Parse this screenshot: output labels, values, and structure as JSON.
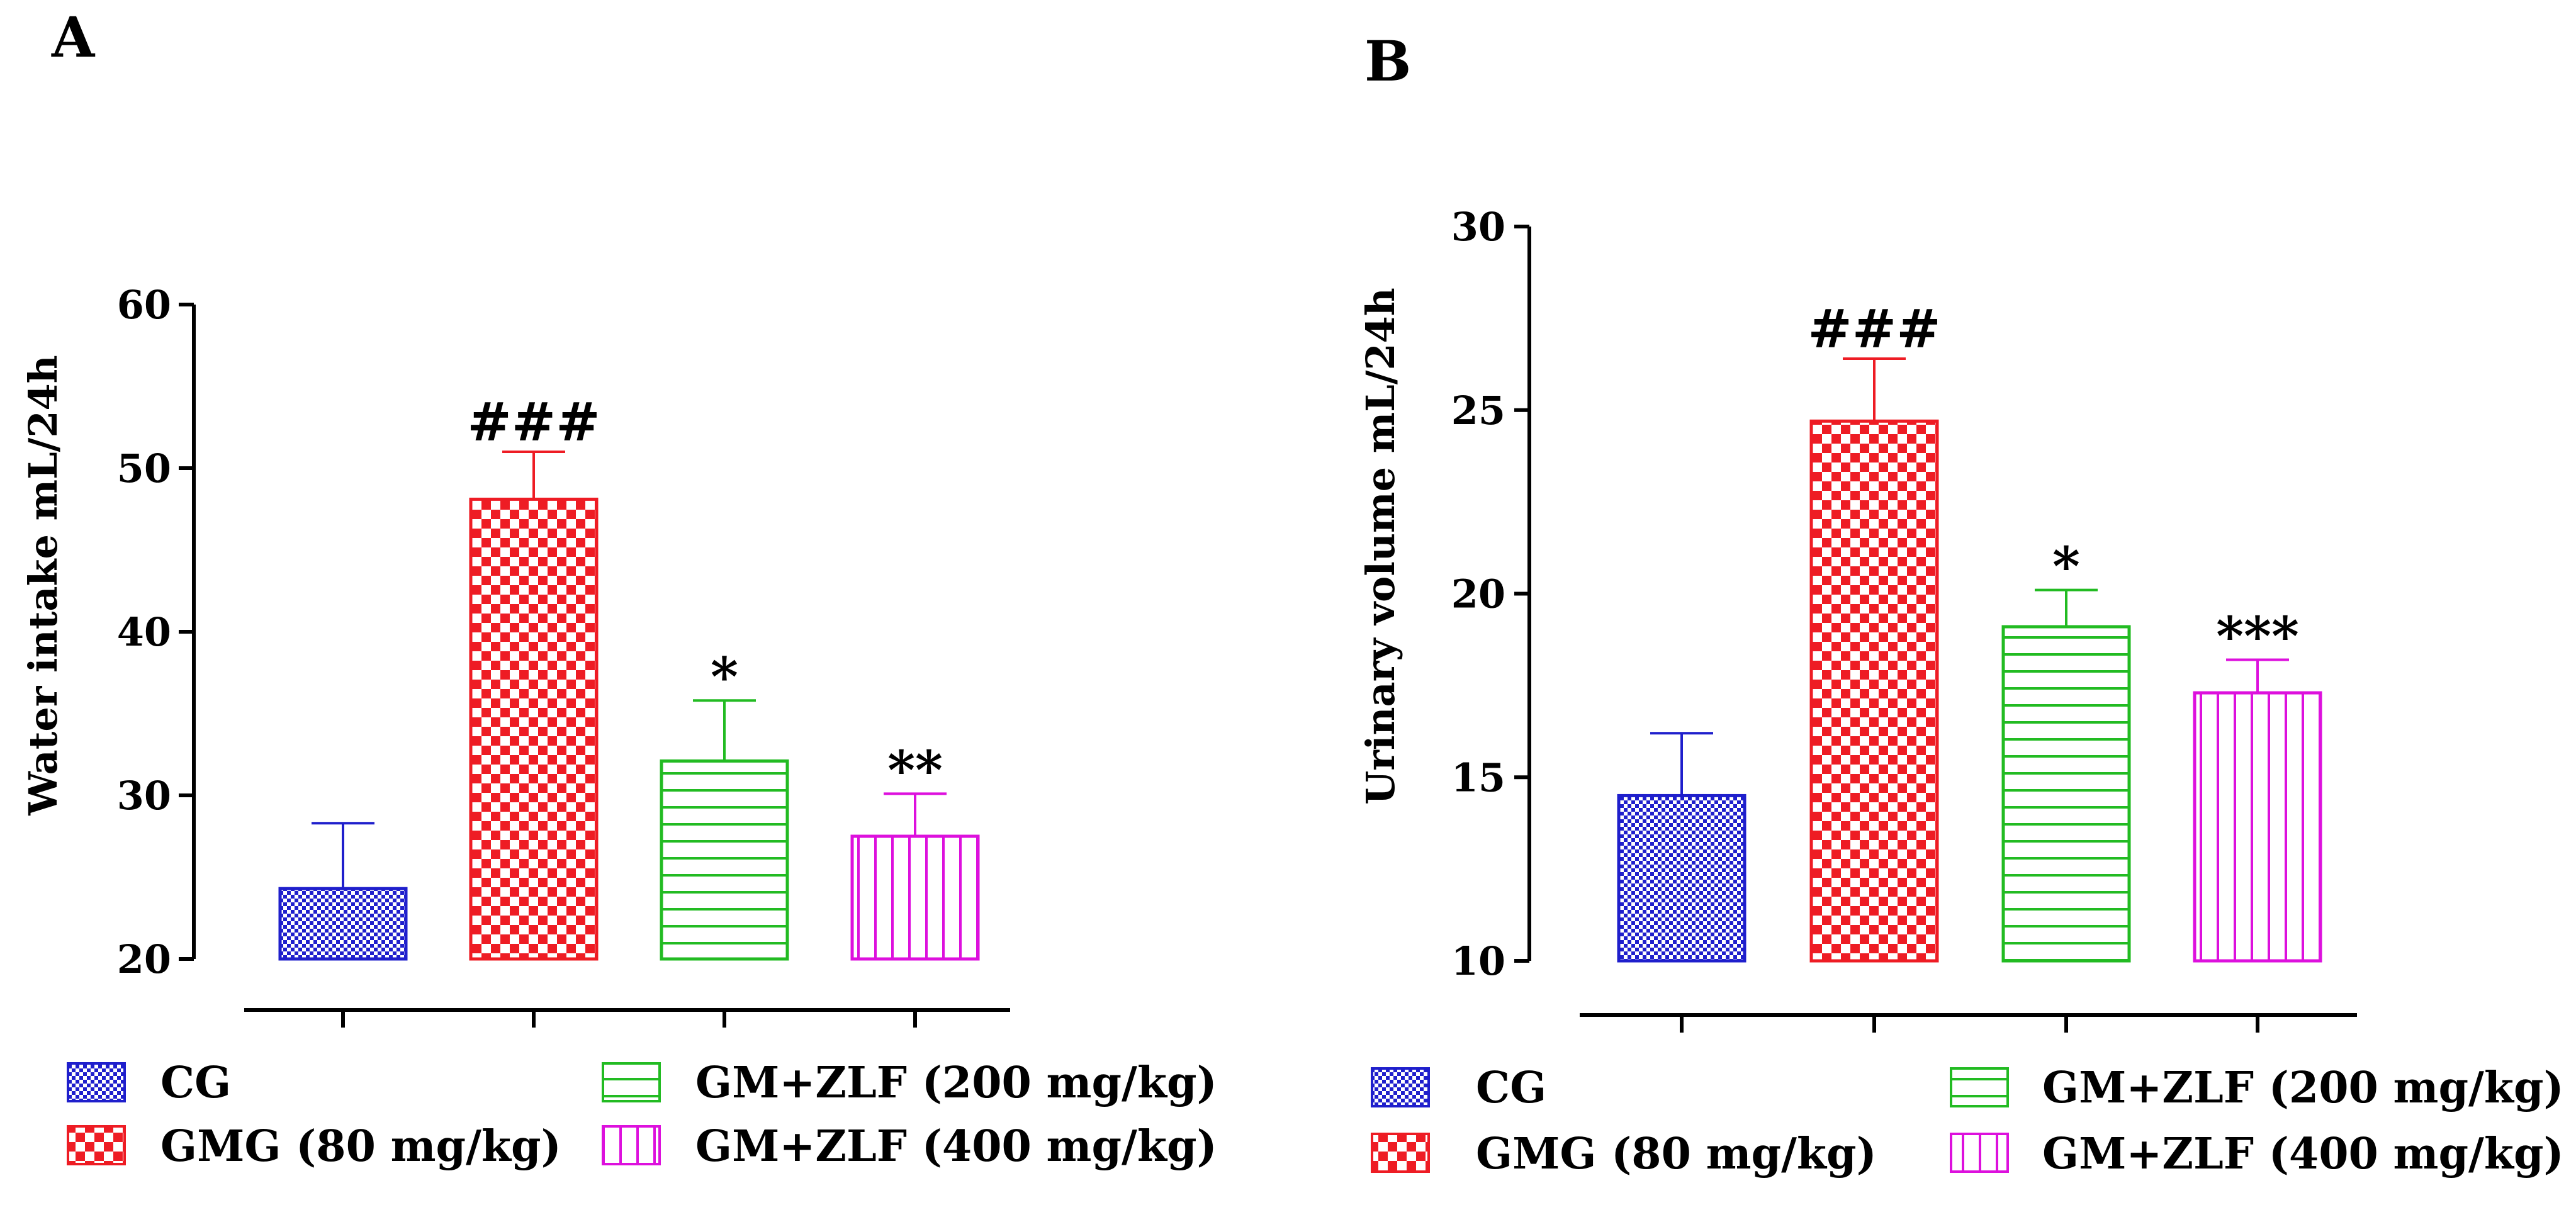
{
  "figure": {
    "groups": [
      {
        "key": "cg",
        "label": "CG",
        "color": "#1f1fcc",
        "pattern": "checker-small"
      },
      {
        "key": "gmg",
        "label": "GMG (80 mg/kg)",
        "color": "#ee1c24",
        "pattern": "checker-large"
      },
      {
        "key": "zlf200",
        "label": "GM+ZLF (200 mg/kg)",
        "color": "#22bb22",
        "pattern": "horizontal"
      },
      {
        "key": "zlf400",
        "label": "GM+ZLF (400 mg/kg)",
        "color": "#dd10dd",
        "pattern": "vertical"
      }
    ]
  },
  "chart_data": [
    {
      "type": "bar",
      "panel_label": "A",
      "title": "",
      "xlabel": "",
      "ylabel": "Water intake mL/24h",
      "ylim": [
        20,
        60
      ],
      "yticks": [
        20,
        30,
        40,
        50,
        60
      ],
      "categories": [
        "CG",
        "GMG (80 mg/kg)",
        "GM+ZLF (200 mg/kg)",
        "GM+ZLF (400 mg/kg)"
      ],
      "values": [
        24.3,
        48.1,
        32.1,
        27.5
      ],
      "errors": [
        4.0,
        2.9,
        3.7,
        2.6
      ],
      "annotations": [
        "",
        "###",
        "*",
        "**"
      ]
    },
    {
      "type": "bar",
      "panel_label": "B",
      "title": "",
      "xlabel": "",
      "ylabel": "Urinary volume mL/24h",
      "ylim": [
        10,
        30
      ],
      "yticks": [
        10,
        15,
        20,
        25,
        30
      ],
      "categories": [
        "CG",
        "GMG (80 mg/kg)",
        "GM+ZLF (200 mg/kg)",
        "GM+ZLF (400 mg/kg)"
      ],
      "values": [
        14.5,
        24.7,
        19.1,
        17.3
      ],
      "errors": [
        1.7,
        1.7,
        1.0,
        0.9
      ],
      "annotations": [
        "",
        "###",
        "*",
        "***"
      ]
    }
  ]
}
